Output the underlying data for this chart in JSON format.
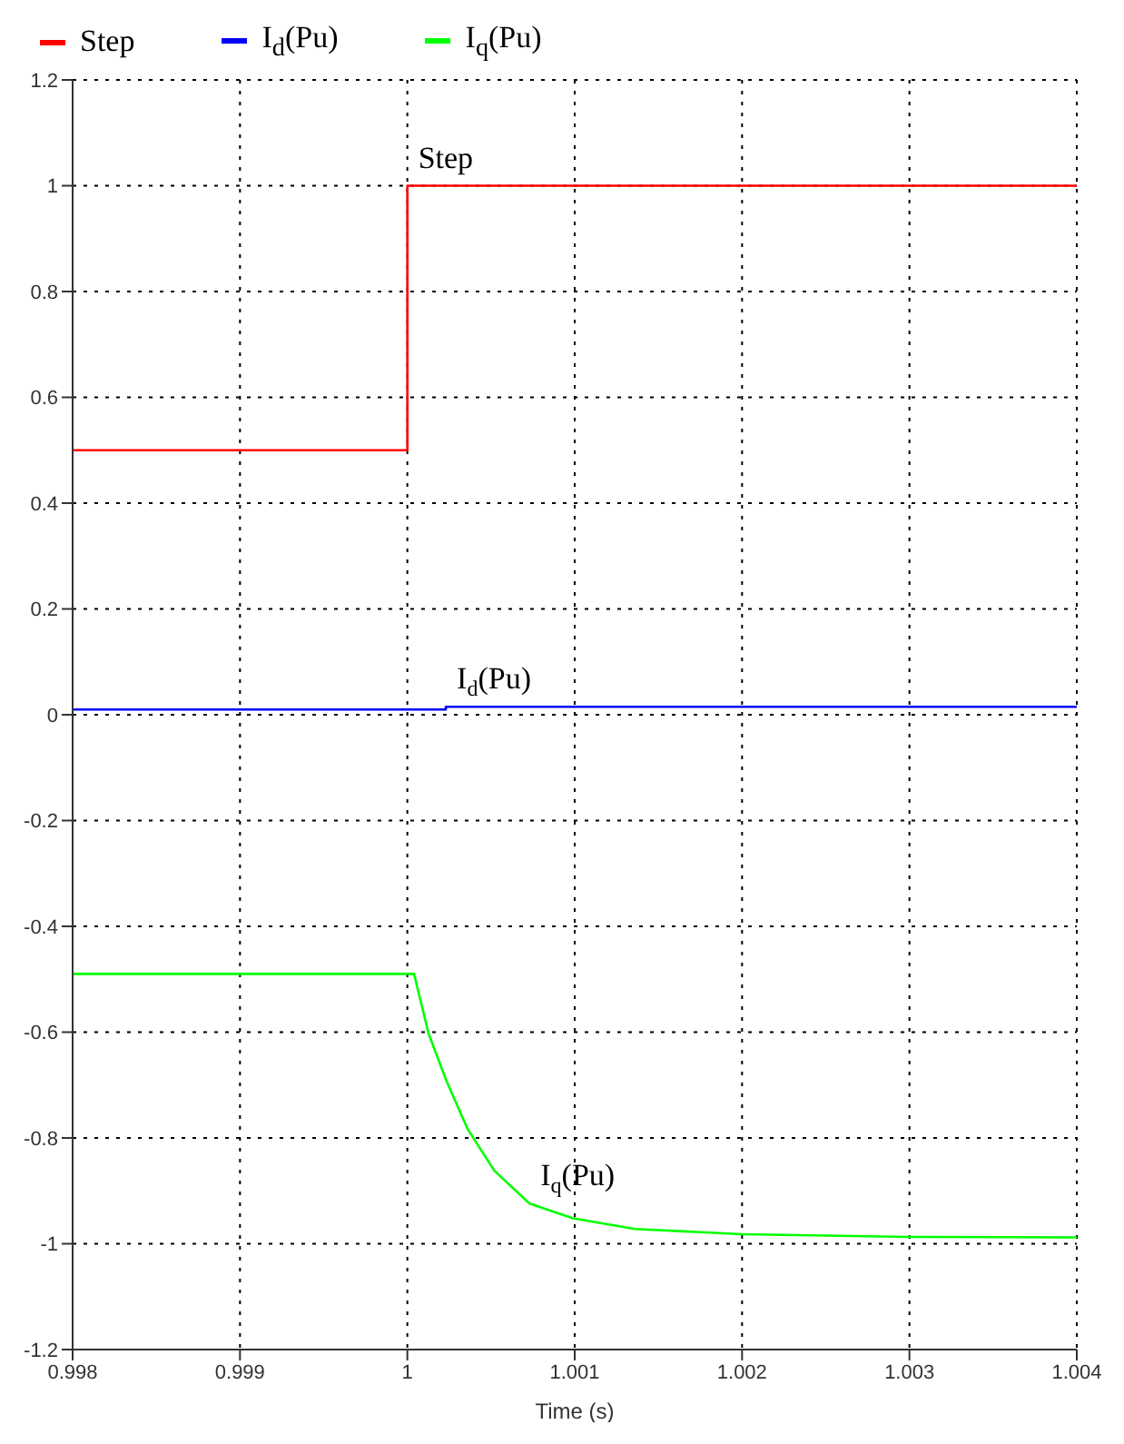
{
  "chart_data": {
    "type": "line",
    "xlabel": "Time (s)",
    "series": [
      {
        "name": "Step",
        "type": "step",
        "color": "#ff0000",
        "x": [
          0.998,
          1.0,
          1.004
        ],
        "values": [
          0.5,
          1,
          1
        ]
      },
      {
        "name": "I$_{d}$(Pu)",
        "type": "step",
        "color": "#0000ff",
        "x": [
          0.998,
          1.00023,
          1.004
        ],
        "values": [
          0.01,
          0.015,
          0.015
        ]
      },
      {
        "name": "I$_{q}$(Pu)",
        "color": "#00ff00",
        "x": [
          0.998,
          1.00004,
          1.000127,
          1.000235,
          1.00036,
          1.00052,
          1.00073,
          1.00099,
          1.00136,
          1.002,
          1.003,
          1.004
        ],
        "values": [
          -0.49,
          -0.49,
          -0.603,
          -0.693,
          -0.783,
          -0.862,
          -0.924,
          -0.952,
          -0.972,
          -0.982,
          -0.987,
          -0.988
        ]
      }
    ],
    "annotations": [
      "Step",
      "I$_{d}$(Pu)",
      "I$_{q}$(Pu)"
    ],
    "xlim": [
      0.998,
      1.004
    ],
    "xticks": [
      0.998,
      0.999,
      1,
      1.001,
      1.002,
      1.003,
      1.004
    ],
    "ylim": [
      -1.2,
      1.2
    ],
    "yticks": [
      -1.2,
      -1,
      -0.8,
      -0.6,
      -0.4,
      -0.2,
      0,
      0.2,
      0.4,
      0.6,
      0.8,
      1,
      1.2
    ],
    "grid": true,
    "legend": "top left",
    "marker": "none",
    "line_style": "solid"
  }
}
